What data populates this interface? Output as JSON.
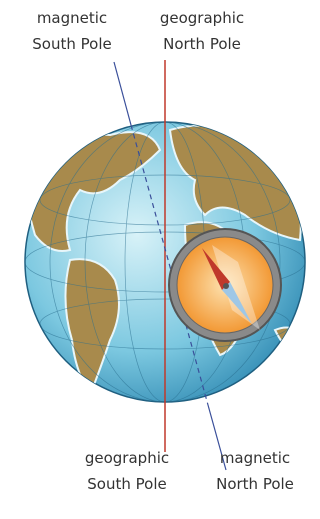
{
  "labels": [
    {
      "lines": [
        "magnetic",
        "South Pole"
      ]
    },
    {
      "lines": [
        "geographic",
        "North Pole"
      ]
    },
    {
      "lines": [
        "geographic",
        "South Pole"
      ]
    },
    {
      "lines": [
        "magnetic",
        "North Pole"
      ]
    }
  ]
}
